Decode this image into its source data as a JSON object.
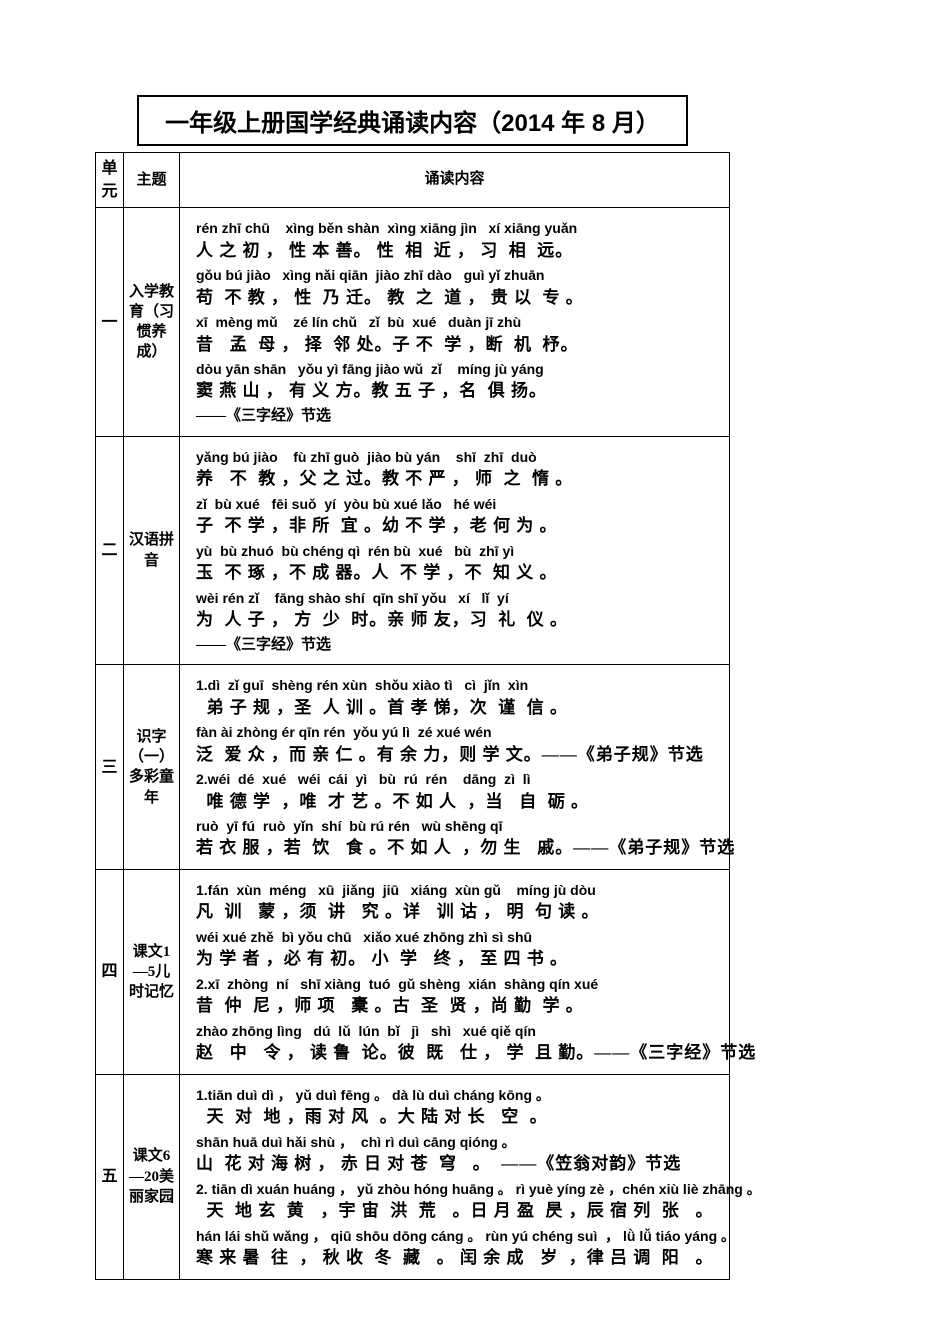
{
  "title": "一年级上册国学经典诵读内容（2014 年 8 月）",
  "headers": {
    "unit": "单元",
    "theme": "主题",
    "content": "诵读内容"
  },
  "rows": [
    {
      "unit": "一",
      "theme": "入学教育（习惯养成）",
      "lines": [
        {
          "py": "rén zhī chū    xìng běn shàn  xìng xiāng jìn   xí xiāng yuǎn",
          "hz": "人 之 初 ， 性 本 善。 性  相  近 ， 习  相  远。"
        },
        {
          "py": "gǒu bú jiào   xìng nǎi qiān  jiào zhī dào   guì yǐ zhuān",
          "hz": "苟  不 教 ， 性  乃 迁。 教  之  道 ， 贵 以  专 。"
        },
        {
          "py": "xī  mèng mǔ    zé lín chǔ   zǐ  bù  xué   duàn jī zhù",
          "hz": "昔   孟  母 ， 择  邻 处。子 不  学 ，断  机  杼。"
        },
        {
          "py": "dòu yān shān   yǒu yì fāng jiào wǔ  zǐ    míng jù yáng",
          "hz": "窦 燕 山 ， 有 义 方。教 五 子 ，名  俱 扬。"
        }
      ],
      "source": "——《三字经》节选"
    },
    {
      "unit": "二",
      "theme": "汉语拼音",
      "lines": [
        {
          "py": "yǎng bú jiào    fù zhī guò  jiào bù yán    shī  zhī  duò",
          "hz": "养   不  教 ，父 之 过。教 不 严 ， 师  之  惰 。"
        },
        {
          "py": "zǐ  bù xué   fēi suǒ  yí  yòu bù xué lǎo   hé wéi",
          "hz": "子  不 学 ，非 所  宜 。幼 不 学 ，老 何 为 。"
        },
        {
          "py": "yù  bù zhuó  bù chéng qì  rén bù  xué   bù  zhī yì",
          "hz": "玉  不 琢 ，不 成 器。人  不 学 ，不  知 义 。"
        },
        {
          "py": "wèi rén zǐ    fāng shào shí  qīn shī yǒu   xí   lǐ  yí",
          "hz": "为  人 子 ， 方  少  时。亲 师 友，习  礼  仪 。"
        }
      ],
      "source": "——《三字经》节选"
    },
    {
      "unit": "三",
      "theme": "识字（一）多彩童年",
      "lines": [
        {
          "py": "1.dì  zǐ guī  shèng rén xùn  shǒu xiào tì   cì  jǐn  xìn",
          "hz": "  弟 子 规 ，圣  人 训 。首 孝 悌，次  谨  信 。"
        },
        {
          "py": "fàn ài zhòng ér qīn rén  yǒu yú lì  zé xué wén",
          "hz": "泛  爱 众 ，而 亲 仁 。有 余 力，则 学 文。——《弟子规》节选"
        },
        {
          "py": "2.wéi  dé  xué   wéi  cái  yì   bù  rú  rén    dāng  zì  lì",
          "hz": "  唯 德 学  ，唯  才 艺 。不 如 人  ，当   自  砺 。"
        },
        {
          "py": "ruò  yī fú  ruò  yǐn  shí  bù rú rén   wù shēng qī",
          "hz": "若 衣 服 ，若  饮   食 。不 如 人  ，勿 生   戚。——《弟子规》节选"
        }
      ],
      "source": ""
    },
    {
      "unit": "四",
      "theme": "课文1—5儿时记忆",
      "lines": [
        {
          "py": "1.fán  xùn  méng   xū  jiǎng  jiū   xiáng  xùn gǔ    míng jù dòu",
          "hz": "凡  训   蒙 ，须  讲   究 。详   训 诂 ， 明  句 读 。"
        },
        {
          "py": "wéi xué zhě  bì yǒu chū   xiǎo xué zhōng zhì sì shū",
          "hz": "为 学 者 ，必 有 初。 小  学   终 ， 至 四 书 。"
        },
        {
          "py": "2.xī  zhòng  ní   shī xiàng  tuó  gǔ shèng  xián  shàng qín xué",
          "hz": "昔  仲  尼 ，师 项   橐 。古  圣  贤 ，尚 勤  学 。"
        },
        {
          "py": "zhào zhōng lìng   dú  lǔ  lún  bǐ   jì   shì   xué qiě qín",
          "hz": "赵   中   令 ， 读 鲁  论。彼  既   仕 ， 学  且 勤。——《三字经》节选"
        }
      ],
      "source": ""
    },
    {
      "unit": "五",
      "theme": "课文6—20美丽家园",
      "lines": [
        {
          "py": "1.tiān duì dì ， yǔ duì fēng 。 dà lù duì cháng kōng 。",
          "hz": "  天  对  地 ，雨 对 风  。大 陆 对 长   空  。"
        },
        {
          "py": "shān huā duì hǎi shù ，  chì rì duì cāng qióng 。",
          "hz": "山  花 对 海 树 ， 赤 日 对 苍  穹   。  ——《笠翁对韵》节选"
        },
        {
          "py": "2. tiān dì xuán huáng ， yǔ zhòu hóng huāng 。 rì yuè yíng zè ，chén xiù liè zhāng 。",
          "hz": "  天  地 玄  黄   ，宇 宙  洪  荒   。日 月 盈  昃 ，辰 宿 列  张   。"
        },
        {
          "py": "hán lái shǔ wǎng ， qiū shōu dōng cáng 。 rùn yú chéng suì  ， lǜ lǚ tiáo yáng 。",
          "hz": "寒 来 暑  往  ， 秋 收  冬  藏   。 闰 余 成   岁  ，律 吕 调  阳   。"
        }
      ],
      "source": ""
    }
  ]
}
